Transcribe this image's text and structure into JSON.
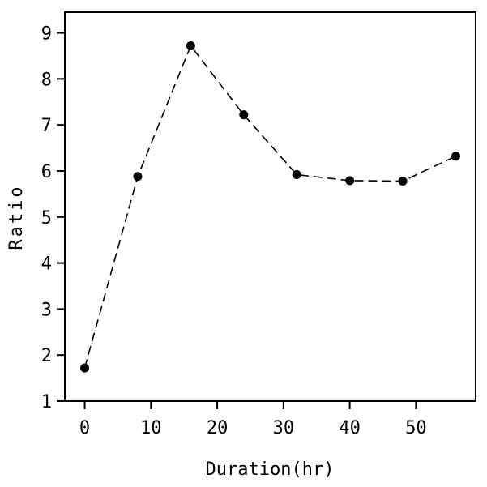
{
  "chart_data": {
    "type": "line",
    "title": "",
    "xlabel": "Duration(hr)",
    "ylabel": "Ratio",
    "xlim": [
      -3,
      59
    ],
    "ylim": [
      1,
      9.45
    ],
    "xticks": [
      0,
      10,
      20,
      30,
      40,
      50
    ],
    "yticks": [
      1,
      2,
      3,
      4,
      5,
      6,
      7,
      8,
      9
    ],
    "grid": false,
    "legend": "none",
    "line_style": "dashed",
    "marker": "filled-circle",
    "color": "#000000",
    "series": [
      {
        "x": [
          0,
          8,
          16,
          24,
          32,
          40,
          48,
          56
        ],
        "y": [
          1.72,
          5.88,
          8.72,
          7.22,
          5.92,
          5.79,
          5.78,
          6.32
        ]
      }
    ]
  }
}
